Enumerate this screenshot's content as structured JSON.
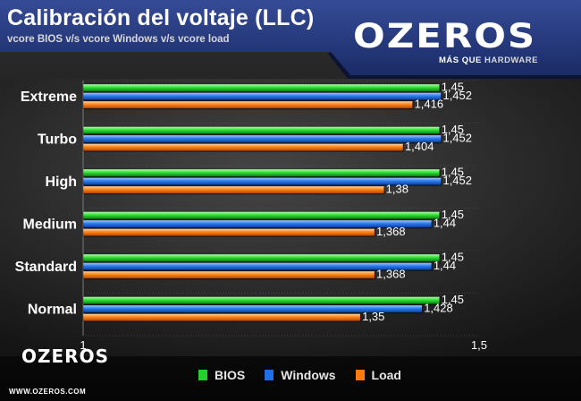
{
  "header": {
    "title": "Calibración del voltaje (LLC)",
    "subtitle": "vcore BIOS v/s vcore Windows v/s vcore load"
  },
  "brand": {
    "name": "OZEROS",
    "tagline_prefix": "MÁS QUE",
    "tagline_suffix": "HARDWARE",
    "url": "WWW.OZEROS.COM"
  },
  "colors": {
    "bios": "#22d12a",
    "windows": "#1f6fe8",
    "load": "#ff7a10"
  },
  "chart_data": {
    "type": "bar",
    "orientation": "horizontal",
    "title": "Calibración del voltaje (LLC)",
    "subtitle": "vcore BIOS v/s vcore Windows v/s vcore load",
    "categories": [
      "Extreme",
      "Turbo",
      "High",
      "Medium",
      "Standard",
      "Normal"
    ],
    "series": [
      {
        "name": "BIOS",
        "values": [
          1.45,
          1.45,
          1.45,
          1.45,
          1.45,
          1.45
        ],
        "labels": [
          "1,45",
          "1,45",
          "1,45",
          "1,45",
          "1,45",
          "1,45"
        ]
      },
      {
        "name": "Windows",
        "values": [
          1.452,
          1.452,
          1.452,
          1.44,
          1.44,
          1.428
        ],
        "labels": [
          "1,452",
          "1,452",
          "1,452",
          "1,44",
          "1,44",
          "1,428"
        ]
      },
      {
        "name": "Load",
        "values": [
          1.416,
          1.404,
          1.38,
          1.368,
          1.368,
          1.35
        ],
        "labels": [
          "1,416",
          "1,404",
          "1,38",
          "1,368",
          "1,368",
          "1,35"
        ]
      }
    ],
    "xlim": [
      1,
      1.5
    ],
    "x_ticks": [
      1,
      1.5
    ],
    "x_tick_labels": [
      "1",
      "1,5"
    ],
    "grid": true,
    "legend": "bottom"
  }
}
